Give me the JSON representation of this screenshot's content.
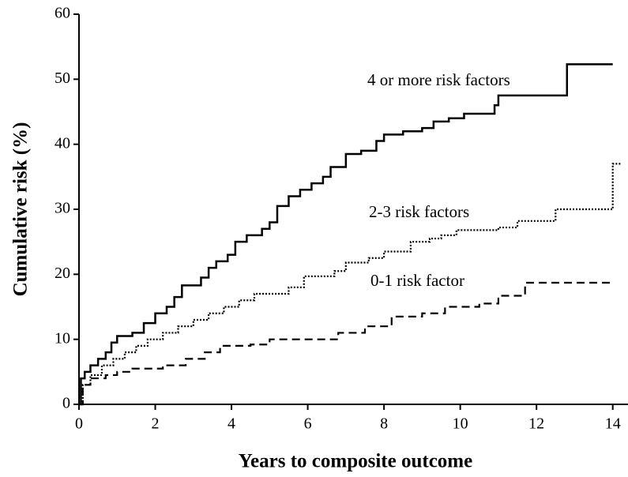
{
  "chart_data": {
    "type": "step",
    "x_label": "Years to composite outcome",
    "y_label": "Cumulative risk (%)",
    "xlim": [
      0,
      14.4
    ],
    "ylim": [
      0,
      60
    ],
    "xticks": [
      0,
      2,
      4,
      6,
      8,
      10,
      12,
      14
    ],
    "yticks": [
      0,
      10,
      20,
      30,
      40,
      50,
      60
    ],
    "grid": false,
    "series": [
      {
        "name": "4 or more risk factors",
        "color": "#000000",
        "line_style": "solid",
        "x": [
          0,
          0.05,
          0.15,
          0.3,
          0.5,
          0.7,
          0.85,
          1.0,
          1.4,
          1.7,
          2.0,
          2.3,
          2.5,
          2.7,
          3.2,
          3.4,
          3.6,
          3.9,
          4.1,
          4.4,
          4.8,
          5.0,
          5.2,
          5.5,
          5.8,
          6.1,
          6.4,
          6.6,
          7.0,
          7.4,
          7.8,
          8.0,
          8.5,
          9.0,
          9.3,
          9.7,
          10.1,
          10.9,
          11.0,
          12.8,
          14.0
        ],
        "values": [
          0,
          4,
          5,
          6,
          7,
          8,
          9.5,
          10.5,
          11,
          12.5,
          14,
          15,
          16.5,
          18.3,
          19.5,
          21,
          22,
          23,
          25,
          26,
          27,
          28,
          30.5,
          32,
          33,
          34,
          35,
          36.5,
          38.5,
          39,
          40.5,
          41.5,
          42,
          42.5,
          43.5,
          44,
          44.7,
          46,
          47.5,
          52.3,
          52.3
        ]
      },
      {
        "name": "2-3 risk factors",
        "color": "#000000",
        "line_style": "dotted",
        "x": [
          0,
          0.1,
          0.3,
          0.6,
          0.9,
          1.2,
          1.5,
          1.8,
          2.2,
          2.6,
          3.0,
          3.4,
          3.8,
          4.2,
          4.6,
          5.5,
          5.9,
          6.7,
          7.0,
          7.6,
          8.0,
          8.7,
          9.2,
          9.5,
          9.9,
          11.0,
          11.5,
          12.5,
          14.0,
          14.2
        ],
        "values": [
          0,
          3,
          4.5,
          6,
          7,
          8,
          9,
          10,
          11,
          12,
          13,
          14,
          15,
          16,
          17,
          18,
          19.7,
          20.5,
          21.8,
          22.5,
          23.5,
          25,
          25.5,
          26,
          26.8,
          27.2,
          28.2,
          30,
          37,
          37
        ]
      },
      {
        "name": "0-1 risk factor",
        "color": "#000000",
        "line_style": "dashed",
        "x": [
          0,
          0.1,
          0.3,
          0.7,
          1.0,
          1.4,
          2.2,
          2.8,
          3.3,
          3.7,
          4.5,
          5.0,
          6.8,
          7.5,
          8.2,
          9.0,
          9.6,
          10.5,
          11.0,
          11.7,
          14.0
        ],
        "values": [
          0,
          3,
          4,
          4.5,
          5,
          5.5,
          6,
          7,
          8,
          9,
          9.2,
          10,
          11,
          12,
          13.5,
          14,
          15,
          15.5,
          16.7,
          18.7,
          18.7
        ]
      }
    ]
  }
}
